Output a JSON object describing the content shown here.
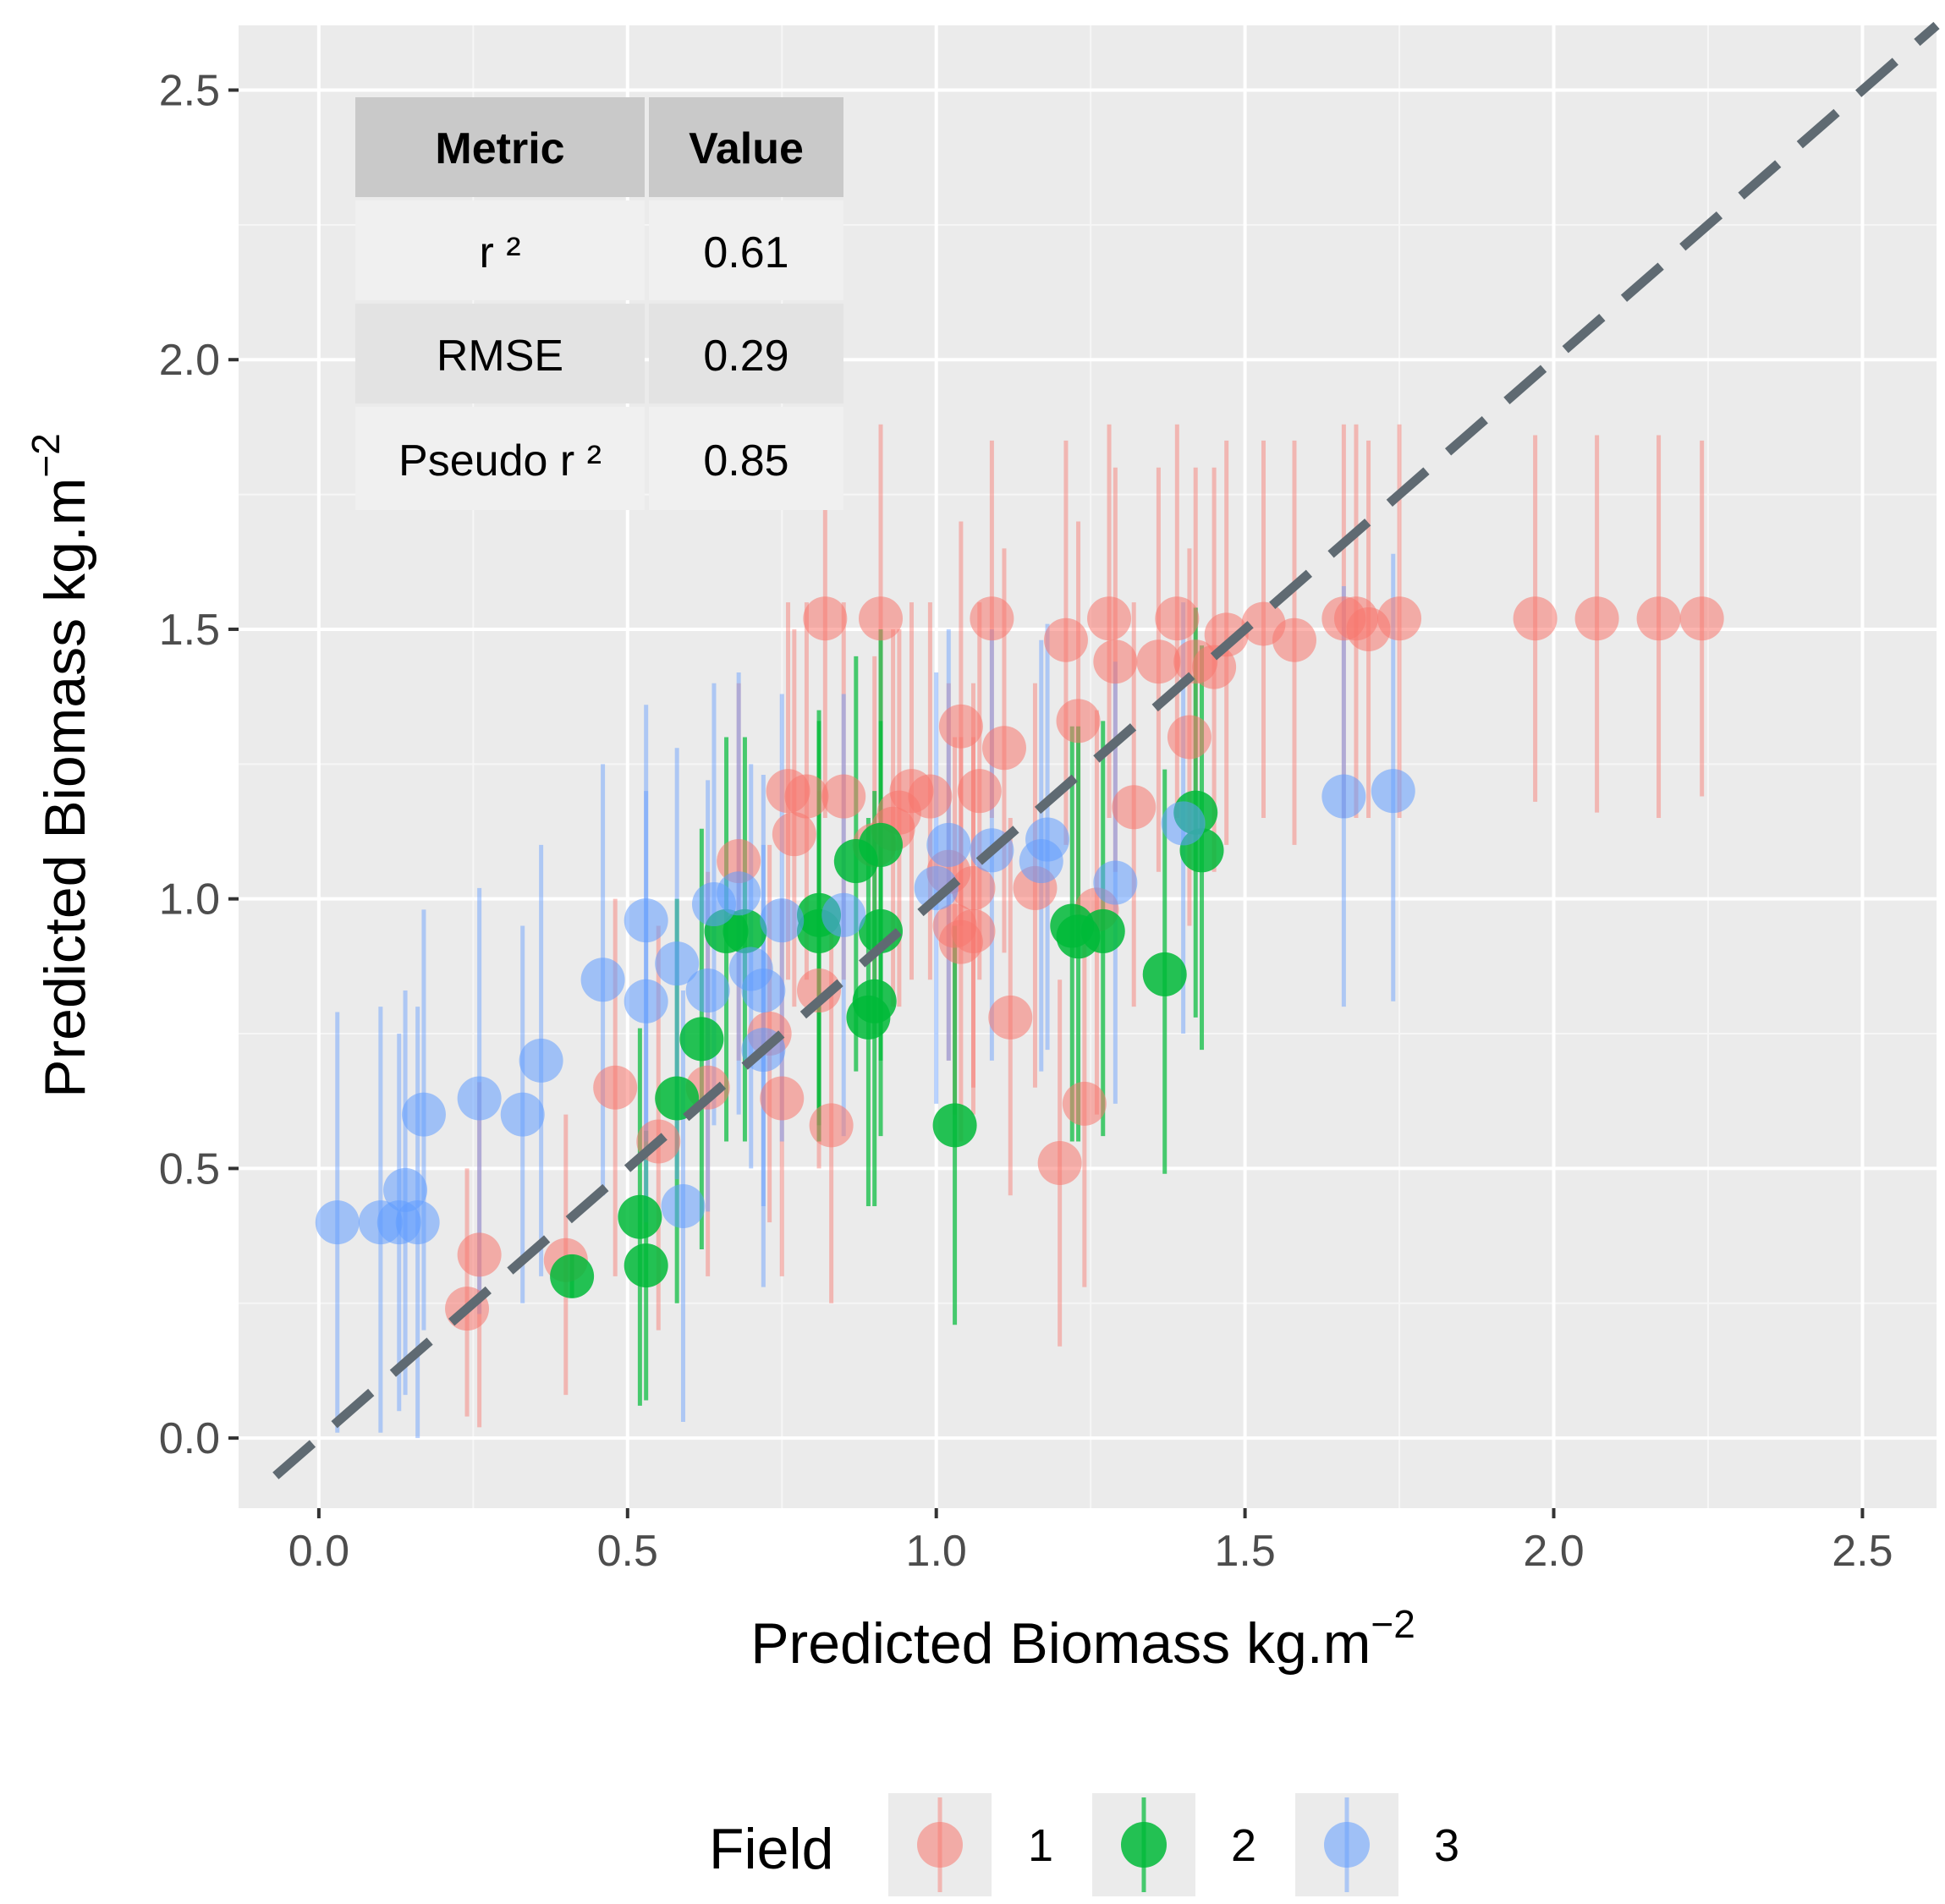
{
  "chart_data": {
    "type": "scatter",
    "xlabel": "Predicted Biomass kg.m",
    "xlabel_sup": "−2",
    "ylabel": "Predicted Biomass kg.m",
    "ylabel_sup": "−2",
    "xlim": [
      -0.13,
      2.62
    ],
    "ylim": [
      -0.13,
      2.62
    ],
    "x_ticks": [
      0.0,
      0.5,
      1.0,
      1.5,
      2.0,
      2.5
    ],
    "y_ticks": [
      0.0,
      0.5,
      1.0,
      1.5,
      2.0,
      2.5
    ],
    "x_tick_labels": [
      "0.0",
      "0.5",
      "1.0",
      "1.5",
      "2.0",
      "2.5"
    ],
    "y_tick_labels": [
      "0.0",
      "0.5",
      "1.0",
      "1.5",
      "2.0",
      "2.5"
    ],
    "grid": true,
    "reference_line": "y = x (dashed)",
    "legend": {
      "title": "Field",
      "placement": "bottom",
      "entries": [
        {
          "label": "1",
          "color": "#F8766D"
        },
        {
          "label": "2",
          "color": "#00BA38"
        },
        {
          "label": "3",
          "color": "#619CFF"
        }
      ]
    },
    "table": {
      "headers": [
        "Metric",
        "Value"
      ],
      "rows": [
        [
          "r ²",
          "0.61"
        ],
        [
          "RMSE",
          "0.29"
        ],
        [
          "Pseudo r ²",
          "0.85"
        ]
      ]
    },
    "series": [
      {
        "name": "1",
        "color": "#F8766D",
        "points": [
          [
            0.24,
            0.24,
            0.04,
            0.5
          ],
          [
            0.26,
            0.34,
            0.02,
            0.66
          ],
          [
            0.4,
            0.33,
            0.08,
            0.6
          ],
          [
            0.48,
            0.65,
            0.3,
            1.0
          ],
          [
            0.55,
            0.55,
            0.2,
            0.95
          ],
          [
            0.63,
            0.65,
            0.3,
            1.05
          ],
          [
            0.68,
            1.07,
            0.7,
            1.4
          ],
          [
            0.73,
            0.75,
            0.4,
            1.1
          ],
          [
            0.75,
            0.63,
            0.3,
            1.0
          ],
          [
            0.76,
            1.2,
            0.85,
            1.55
          ],
          [
            0.77,
            1.12,
            0.8,
            1.5
          ],
          [
            0.79,
            1.19,
            0.85,
            1.55
          ],
          [
            0.81,
            0.83,
            0.5,
            1.2
          ],
          [
            0.82,
            1.52,
            1.15,
            1.9
          ],
          [
            0.83,
            0.58,
            0.25,
            0.95
          ],
          [
            0.85,
            1.19,
            0.85,
            1.55
          ],
          [
            0.9,
            1.1,
            0.75,
            1.45
          ],
          [
            0.91,
            1.52,
            1.15,
            1.88
          ],
          [
            0.93,
            1.13,
            0.8,
            1.5
          ],
          [
            0.94,
            1.16,
            0.8,
            1.5
          ],
          [
            0.96,
            1.2,
            0.85,
            1.55
          ],
          [
            0.99,
            1.19,
            0.85,
            1.55
          ],
          [
            1.02,
            1.05,
            0.7,
            1.4
          ],
          [
            1.03,
            0.95,
            0.6,
            1.3
          ],
          [
            1.04,
            0.92,
            0.55,
            1.3
          ],
          [
            1.04,
            1.32,
            0.95,
            1.7
          ],
          [
            1.06,
            1.02,
            0.65,
            1.4
          ],
          [
            1.06,
            0.94,
            0.6,
            1.3
          ],
          [
            1.07,
            1.2,
            0.85,
            1.55
          ],
          [
            1.09,
            1.52,
            1.15,
            1.85
          ],
          [
            1.11,
            1.28,
            0.9,
            1.65
          ],
          [
            1.12,
            0.78,
            0.45,
            1.15
          ],
          [
            1.16,
            1.02,
            0.65,
            1.4
          ],
          [
            1.2,
            0.51,
            0.17,
            0.85
          ],
          [
            1.21,
            1.48,
            1.1,
            1.85
          ],
          [
            1.23,
            1.33,
            0.95,
            1.7
          ],
          [
            1.24,
            0.62,
            0.28,
            0.95
          ],
          [
            1.26,
            0.98,
            0.6,
            1.35
          ],
          [
            1.28,
            1.52,
            1.15,
            1.88
          ],
          [
            1.29,
            1.44,
            1.05,
            1.8
          ],
          [
            1.32,
            1.17,
            0.8,
            1.55
          ],
          [
            1.36,
            1.44,
            1.05,
            1.8
          ],
          [
            1.39,
            1.52,
            1.15,
            1.88
          ],
          [
            1.41,
            1.3,
            0.95,
            1.65
          ],
          [
            1.42,
            1.44,
            1.05,
            1.8
          ],
          [
            1.45,
            1.43,
            1.05,
            1.8
          ],
          [
            1.47,
            1.49,
            1.1,
            1.85
          ],
          [
            1.53,
            1.51,
            1.15,
            1.85
          ],
          [
            1.58,
            1.48,
            1.1,
            1.85
          ],
          [
            1.66,
            1.52,
            1.15,
            1.88
          ],
          [
            1.68,
            1.52,
            1.15,
            1.88
          ],
          [
            1.7,
            1.5,
            1.15,
            1.85
          ],
          [
            1.75,
            1.52,
            1.15,
            1.88
          ],
          [
            1.97,
            1.52,
            1.18,
            1.86
          ],
          [
            2.07,
            1.52,
            1.16,
            1.86
          ],
          [
            2.17,
            1.52,
            1.15,
            1.86
          ],
          [
            2.24,
            1.52,
            1.19,
            1.85
          ]
        ]
      },
      {
        "name": "2",
        "color": "#00BA38",
        "points": [
          [
            0.41,
            0.3,
            0.26,
            0.34
          ],
          [
            0.52,
            0.41,
            0.06,
            0.76
          ],
          [
            0.53,
            0.32,
            0.07,
            0.57
          ],
          [
            0.58,
            0.63,
            0.25,
            1.0
          ],
          [
            0.62,
            0.74,
            0.35,
            1.13
          ],
          [
            0.66,
            0.94,
            0.55,
            1.3
          ],
          [
            0.69,
            0.94,
            0.55,
            1.3
          ],
          [
            0.81,
            0.97,
            0.58,
            1.35
          ],
          [
            0.81,
            0.94,
            0.55,
            1.33
          ],
          [
            0.87,
            1.07,
            0.68,
            1.45
          ],
          [
            0.89,
            0.78,
            0.43,
            1.15
          ],
          [
            0.9,
            0.81,
            0.43,
            1.2
          ],
          [
            0.91,
            0.94,
            0.56,
            1.33
          ],
          [
            0.91,
            1.1,
            0.7,
            1.5
          ],
          [
            1.03,
            0.58,
            0.21,
            0.95
          ],
          [
            1.22,
            0.95,
            0.55,
            1.32
          ],
          [
            1.23,
            0.93,
            0.55,
            1.32
          ],
          [
            1.27,
            0.94,
            0.56,
            1.33
          ],
          [
            1.37,
            0.86,
            0.49,
            1.24
          ],
          [
            1.42,
            1.16,
            0.78,
            1.54
          ],
          [
            1.43,
            1.09,
            0.72,
            1.47
          ]
        ]
      },
      {
        "name": "3",
        "color": "#619CFF",
        "points": [
          [
            0.03,
            0.4,
            0.01,
            0.79
          ],
          [
            0.1,
            0.4,
            0.01,
            0.8
          ],
          [
            0.13,
            0.4,
            0.05,
            0.75
          ],
          [
            0.14,
            0.46,
            0.08,
            0.83
          ],
          [
            0.16,
            0.4,
            0.0,
            0.8
          ],
          [
            0.17,
            0.6,
            0.2,
            0.98
          ],
          [
            0.26,
            0.63,
            0.23,
            1.02
          ],
          [
            0.33,
            0.6,
            0.25,
            0.95
          ],
          [
            0.36,
            0.7,
            0.3,
            1.1
          ],
          [
            0.46,
            0.85,
            0.45,
            1.25
          ],
          [
            0.53,
            0.81,
            0.4,
            1.2
          ],
          [
            0.53,
            0.96,
            0.55,
            1.36
          ],
          [
            0.58,
            0.88,
            0.48,
            1.28
          ],
          [
            0.59,
            0.43,
            0.03,
            0.83
          ],
          [
            0.63,
            0.83,
            0.42,
            1.22
          ],
          [
            0.64,
            0.99,
            0.58,
            1.4
          ],
          [
            0.68,
            1.01,
            0.6,
            1.42
          ],
          [
            0.7,
            0.87,
            0.5,
            1.25
          ],
          [
            0.72,
            0.83,
            0.43,
            1.23
          ],
          [
            0.72,
            0.72,
            0.28,
            1.1
          ],
          [
            0.75,
            0.96,
            0.55,
            1.38
          ],
          [
            0.85,
            0.97,
            0.56,
            1.38
          ],
          [
            1.0,
            1.02,
            0.62,
            1.42
          ],
          [
            1.02,
            1.1,
            0.7,
            1.5
          ],
          [
            1.09,
            1.09,
            0.7,
            1.5
          ],
          [
            1.17,
            1.07,
            0.68,
            1.48
          ],
          [
            1.18,
            1.11,
            0.72,
            1.51
          ],
          [
            1.29,
            1.03,
            0.62,
            1.44
          ],
          [
            1.4,
            1.14,
            0.75,
            1.55
          ],
          [
            1.66,
            1.19,
            0.8,
            1.58
          ],
          [
            1.74,
            1.2,
            0.81,
            1.64
          ]
        ]
      }
    ]
  }
}
